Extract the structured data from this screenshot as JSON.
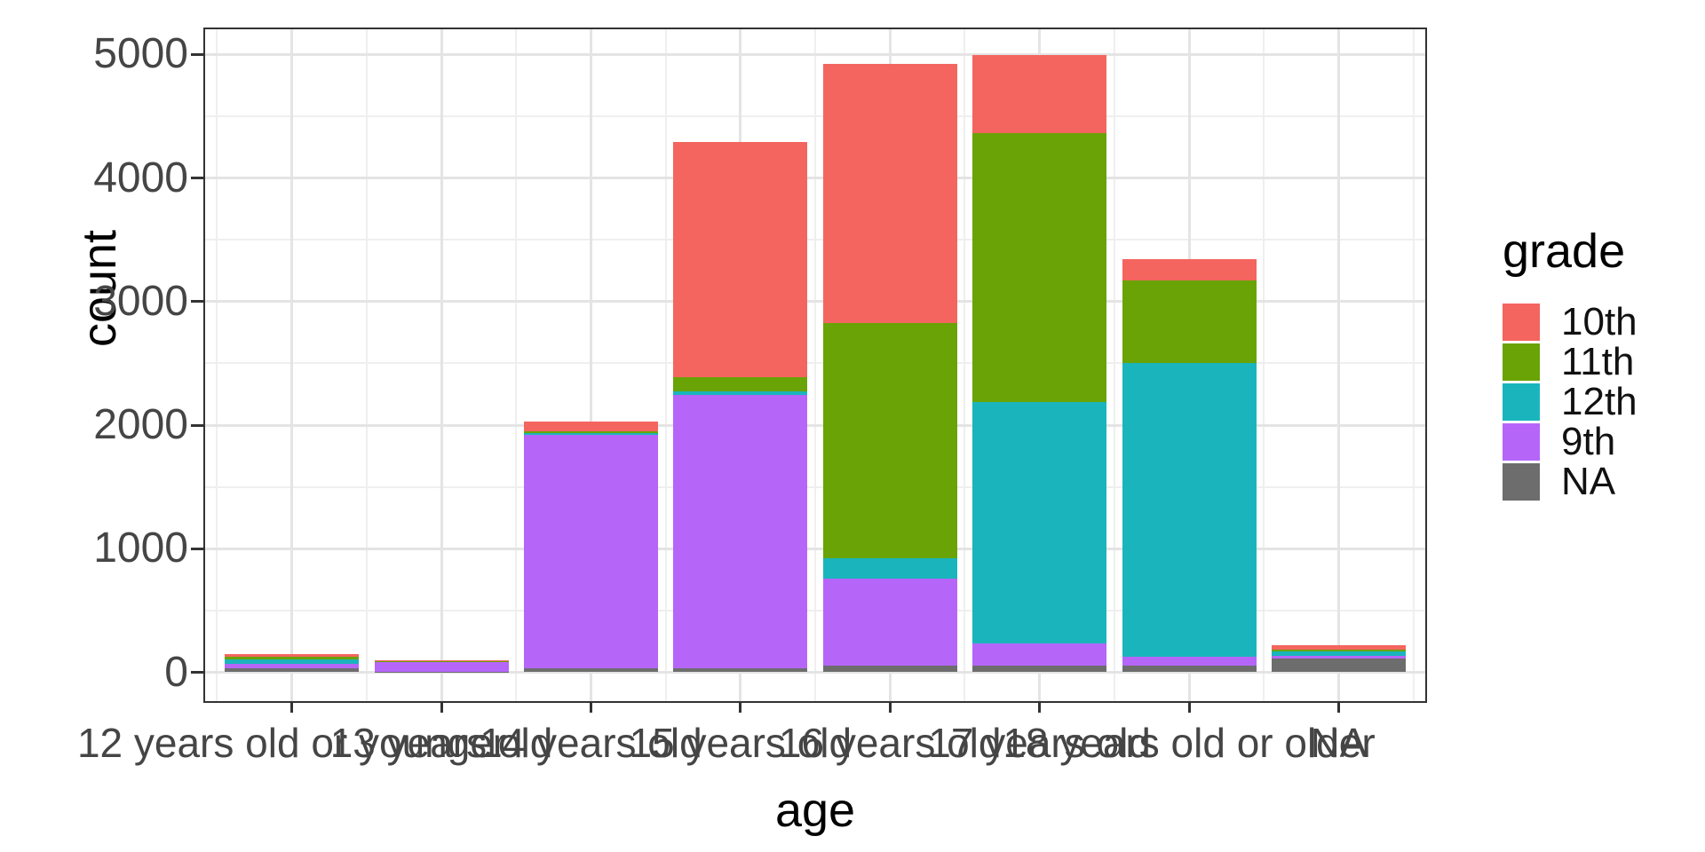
{
  "chart_data": {
    "type": "bar",
    "stacked": true,
    "title": "",
    "xlabel": "age",
    "ylabel": "count",
    "legend_title": "grade",
    "legend_position": "right",
    "grid": "major+minor",
    "categories": [
      "12 years old or younger",
      "13 years old",
      "14 years old",
      "15 years old",
      "16 years old",
      "17 years old",
      "18 years old or older",
      "NA"
    ],
    "series": [
      {
        "name": "10th",
        "color": "#f4655f",
        "values": [
          25,
          5,
          80,
          1905,
          2100,
          635,
          170,
          33
        ]
      },
      {
        "name": "11th",
        "color": "#69a306",
        "values": [
          20,
          2,
          15,
          115,
          1900,
          2170,
          670,
          16
        ]
      },
      {
        "name": "12th",
        "color": "#1ab5bc",
        "values": [
          35,
          2,
          8,
          28,
          165,
          1960,
          2375,
          32
        ]
      },
      {
        "name": "9th",
        "color": "#b566f9",
        "values": [
          40,
          85,
          1895,
          2210,
          705,
          175,
          70,
          25
        ]
      },
      {
        "name": "NA",
        "color": "#6d6d6d",
        "values": [
          30,
          4,
          30,
          35,
          55,
          55,
          55,
          110
        ]
      }
    ],
    "stack_order_bottom_to_top": [
      "NA",
      "9th",
      "12th",
      "11th",
      "10th"
    ],
    "category_totals": [
      150,
      98,
      2028,
      4293,
      4925,
      4995,
      3340,
      216
    ],
    "y_ticks": [
      0,
      1000,
      2000,
      3000,
      4000,
      5000
    ],
    "ylim": [
      0,
      5200
    ],
    "colors": {
      "panel_border": "#333333",
      "major_grid": "#e4e4e4",
      "minor_grid": "#efefef",
      "tick_text": "#454545",
      "title_text": "#000000"
    }
  }
}
